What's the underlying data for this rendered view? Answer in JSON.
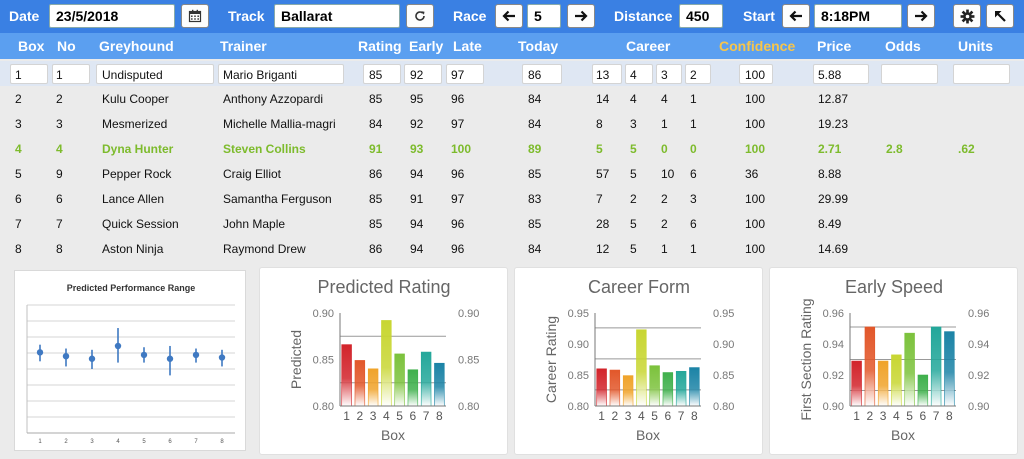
{
  "toolbar": {
    "date_label": "Date",
    "date_value": "23/5/2018",
    "track_label": "Track",
    "track_value": "Ballarat",
    "race_label": "Race",
    "race_value": "5",
    "distance_label": "Distance",
    "distance_value": "450",
    "start_label": "Start",
    "start_value": "8:18PM",
    "icons": [
      "calendar-icon",
      "refresh-icon",
      "arrow-left-icon",
      "arrow-right-icon",
      "gear-icon",
      "arrow-up-left-icon"
    ]
  },
  "columns": [
    "Box",
    "No",
    "Greyhound",
    "Trainer",
    "Rating",
    "Early",
    "Late",
    "Today",
    "Career",
    "Confidence",
    "Price",
    "Odds",
    "Units"
  ],
  "rows": [
    {
      "box": "1",
      "no": "1",
      "name": "Undisputed",
      "trainer": "Mario Briganti",
      "rating": "85",
      "early": "92",
      "late": "97",
      "today": "86",
      "c1": "13",
      "c2": "4",
      "c3": "3",
      "c4": "2",
      "conf": "100",
      "price": "5.88",
      "odds": "",
      "units": ""
    },
    {
      "box": "2",
      "no": "2",
      "name": "Kulu Cooper",
      "trainer": "Anthony Azzopardi",
      "rating": "85",
      "early": "95",
      "late": "96",
      "today": "84",
      "c1": "14",
      "c2": "4",
      "c3": "4",
      "c4": "1",
      "conf": "100",
      "price": "12.87",
      "odds": "",
      "units": ""
    },
    {
      "box": "3",
      "no": "3",
      "name": "Mesmerized",
      "trainer": "Michelle Mallia-magri",
      "rating": "84",
      "early": "92",
      "late": "97",
      "today": "84",
      "c1": "8",
      "c2": "3",
      "c3": "1",
      "c4": "1",
      "conf": "100",
      "price": "19.23",
      "odds": "",
      "units": ""
    },
    {
      "box": "4",
      "no": "4",
      "name": "Dyna Hunter",
      "trainer": "Steven Collins",
      "rating": "91",
      "early": "93",
      "late": "100",
      "today": "89",
      "c1": "5",
      "c2": "5",
      "c3": "0",
      "c4": "0",
      "conf": "100",
      "price": "2.71",
      "odds": "2.8",
      "units": ".62"
    },
    {
      "box": "5",
      "no": "9",
      "name": "Pepper Rock",
      "trainer": "Craig Elliot",
      "rating": "86",
      "early": "94",
      "late": "96",
      "today": "85",
      "c1": "57",
      "c2": "5",
      "c3": "10",
      "c4": "6",
      "conf": "36",
      "price": "8.88",
      "odds": "",
      "units": ""
    },
    {
      "box": "6",
      "no": "6",
      "name": "Lance Allen",
      "trainer": "Samantha Ferguson",
      "rating": "85",
      "early": "91",
      "late": "97",
      "today": "83",
      "c1": "7",
      "c2": "2",
      "c3": "2",
      "c4": "3",
      "conf": "100",
      "price": "29.99",
      "odds": "",
      "units": ""
    },
    {
      "box": "7",
      "no": "7",
      "name": "Quick Session",
      "trainer": "John Maple",
      "rating": "85",
      "early": "94",
      "late": "96",
      "today": "85",
      "c1": "28",
      "c2": "5",
      "c3": "2",
      "c4": "6",
      "conf": "100",
      "price": "8.49",
      "odds": "",
      "units": ""
    },
    {
      "box": "8",
      "no": "8",
      "name": "Aston Ninja",
      "trainer": "Raymond Drew",
      "rating": "86",
      "early": "94",
      "late": "96",
      "today": "84",
      "c1": "12",
      "c2": "5",
      "c3": "1",
      "c4": "1",
      "conf": "100",
      "price": "14.69",
      "odds": "",
      "units": ""
    }
  ],
  "chart_data": [
    {
      "type": "scatter",
      "title": "Predicted Performance Range",
      "xlabel": "",
      "ylabel": "",
      "x": [
        1,
        2,
        3,
        4,
        5,
        6,
        7,
        8
      ],
      "series": [
        {
          "values": [
            0.63,
            0.6,
            0.58,
            0.68,
            0.61,
            0.58,
            0.61,
            0.59
          ],
          "low": [
            0.56,
            0.52,
            0.5,
            0.55,
            0.55,
            0.45,
            0.55,
            0.52
          ],
          "high": [
            0.69,
            0.66,
            0.65,
            0.82,
            0.67,
            0.68,
            0.66,
            0.65
          ]
        }
      ],
      "ylim": [
        0,
        1
      ],
      "grid": true
    },
    {
      "type": "bar",
      "title": "Predicted Rating",
      "xlabel": "Box",
      "ylabel": "Predicted",
      "categories": [
        "1",
        "2",
        "3",
        "4",
        "5",
        "6",
        "7",
        "8"
      ],
      "values": [
        0.866,
        0.849,
        0.84,
        0.892,
        0.856,
        0.839,
        0.858,
        0.846
      ],
      "ylim": [
        0.8,
        0.9
      ],
      "yticks": [
        "0.80",
        "0.85",
        "0.90"
      ],
      "reference_lines": [
        0.875,
        0.825
      ],
      "colors": [
        "#d2232a",
        "#e2572a",
        "#f0a32a",
        "#c8d632",
        "#7cc23c",
        "#3fb04c",
        "#23a79a",
        "#1b83a6"
      ]
    },
    {
      "type": "bar",
      "title": "Career Form",
      "xlabel": "Box",
      "ylabel": "Career Rating",
      "categories": [
        "1",
        "2",
        "3",
        "4",
        "5",
        "6",
        "7",
        "8"
      ],
      "values": [
        0.86,
        0.858,
        0.849,
        0.923,
        0.865,
        0.854,
        0.856,
        0.862
      ],
      "ylim": [
        0.8,
        0.95
      ],
      "yticks": [
        "0.80",
        "0.85",
        "0.90",
        "0.95"
      ],
      "reference_lines": [
        0.926,
        0.876,
        0.826
      ],
      "colors": [
        "#d2232a",
        "#e2572a",
        "#f0a32a",
        "#c8d632",
        "#7cc23c",
        "#3fb04c",
        "#23a79a",
        "#1b83a6"
      ]
    },
    {
      "type": "bar",
      "title": "Early Speed",
      "xlabel": "Box",
      "ylabel": "First Section Rating",
      "categories": [
        "1",
        "2",
        "3",
        "4",
        "5",
        "6",
        "7",
        "8"
      ],
      "values": [
        0.929,
        0.951,
        0.929,
        0.933,
        0.947,
        0.92,
        0.951,
        0.948
      ],
      "ylim": [
        0.9,
        0.96
      ],
      "yticks": [
        "0.90",
        "0.92",
        "0.94",
        "0.96"
      ],
      "reference_lines": [
        0.951,
        0.93,
        0.91
      ],
      "colors": [
        "#d2232a",
        "#e2572a",
        "#f0a32a",
        "#c8d632",
        "#7cc23c",
        "#3fb04c",
        "#23a79a",
        "#1b83a6"
      ]
    }
  ]
}
